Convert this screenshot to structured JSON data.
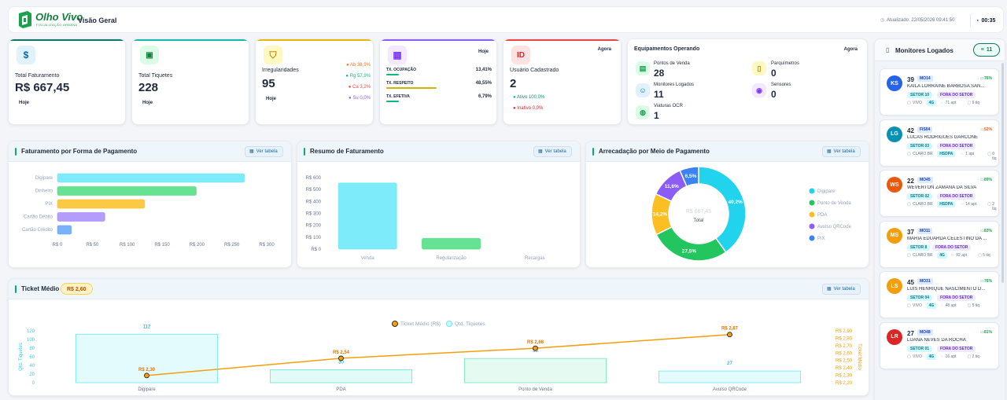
{
  "header": {
    "logo_text": "Olho Vivo",
    "logo_sub": "FISCALIZAÇÃO URBANA",
    "title": "Visão Geral",
    "updated": "Atualizado: 22/05/2026 09:41:50",
    "timer": "00:35"
  },
  "kpi": {
    "faturamento": {
      "label": "Total Faturamento",
      "value": "R$ 667,45",
      "period": "Hoje"
    },
    "tiquetes": {
      "label": "Total Tiquetes",
      "value": "228",
      "period": "Hoje"
    },
    "irregularidades": {
      "label": "Irregularidades",
      "value": "95",
      "period": "Hoje",
      "breakdown": [
        {
          "label": "Ab 38,9%",
          "color": "#f97316"
        },
        {
          "label": "Rg 57,9%",
          "color": "#10b981"
        },
        {
          "label": "Ca 3,2%",
          "color": "#ef4444"
        },
        {
          "label": "Su 0,0%",
          "color": "#8b5cf6"
        }
      ]
    },
    "taxas": {
      "period": "Hoje",
      "rows": [
        {
          "label": "TX. OCUPAÇÃO",
          "value": "13,41%",
          "fill": 0.13,
          "color": "#10b981"
        },
        {
          "label": "TX. RESPEITO",
          "value": "48,55%",
          "fill": 0.49,
          "color": "#d4b106"
        },
        {
          "label": "TX. EFETIVA",
          "value": "6,79%",
          "fill": 0.07,
          "color": "#10b981"
        }
      ]
    },
    "usuario": {
      "label": "Usuário Cadastrado",
      "value": "2",
      "period": "Agora",
      "ativo": "Ativo 100,0%",
      "inativo": "Inativo 0,0%"
    }
  },
  "equipamentos": {
    "title": "Equipamentos Operando",
    "period": "Agora",
    "items": [
      {
        "label": "Pontos de Venda",
        "value": "28"
      },
      {
        "label": "Parquímetros",
        "value": "0"
      },
      {
        "label": "Monitores Logados",
        "value": "11"
      },
      {
        "label": "Sensores",
        "value": "0"
      },
      {
        "label": "Viaturas OCR",
        "value": "1"
      }
    ]
  },
  "monitores": {
    "title": "Monitores Logados",
    "count": "11",
    "items": [
      {
        "initials": "KS",
        "color": "#2563eb",
        "num": "39",
        "code": "MO14",
        "pct": "76%",
        "pct_color": "#16a34a",
        "name": "KAILA LORRAINE BARBOSA SAN...",
        "setor": "SETOR 10",
        "status": "FORA DO SETOR",
        "operadora": "VIVO",
        "rede": "4G",
        "apt": "71 apt",
        "tiq": "6 tiq"
      },
      {
        "initials": "LG",
        "color": "#0891b2",
        "num": "42",
        "code": "FIS04",
        "pct": "52%",
        "pct_color": "#ea580c",
        "name": "LUCAS RODRIGUES GARCONE",
        "setor": "SETOR 03",
        "status": "FORA DO SETOR",
        "operadora": "CLARO BR",
        "rede": "HSDPA",
        "apt": "1 apt",
        "tiq": "0 tiq"
      },
      {
        "initials": "WS",
        "color": "#ea580c",
        "num": "22",
        "code": "MO45",
        "pct": "89%",
        "pct_color": "#16a34a",
        "name": "WEVERTON ZAMANA DA SILVA",
        "setor": "SETOR 02",
        "status": "FORA DO SETOR",
        "operadora": "CLARO BR",
        "rede": "HSDPA",
        "apt": "14 apt",
        "tiq": "2 tiq"
      },
      {
        "initials": "MS",
        "color": "#f59e0b",
        "num": "37",
        "code": "MO11",
        "pct": "83%",
        "pct_color": "#16a34a",
        "name": "MARIA EDUARDA CELESTINO DA ...",
        "setor": "SETOR 8",
        "status": "FORA DO SETOR",
        "operadora": "CLARO BR",
        "rede": "4G",
        "apt": "92 apt",
        "tiq": "5 tiq"
      },
      {
        "initials": "LS",
        "color": "#f59e0b",
        "num": "45",
        "code": "MO31",
        "pct": "76%",
        "pct_color": "#16a34a",
        "name": "LUIS HENRIQUE NASCIMENTO D...",
        "setor": "SETOR 04",
        "status": "FORA DO SETOR",
        "operadora": "VIVO",
        "rede": "4G",
        "apt": "48 apt",
        "tiq": "5 tiq"
      },
      {
        "initials": "LR",
        "color": "#dc2626",
        "num": "27",
        "code": "MO48",
        "pct": "81%",
        "pct_color": "#16a34a",
        "name": "LUANA NEVES DA ROCHA",
        "setor": "SETOR 01",
        "status": "FORA DO SETOR",
        "operadora": "VIVO",
        "rede": "4G",
        "apt": "16 apt",
        "tiq": "2 tiq"
      }
    ]
  },
  "sections": {
    "forma": {
      "title": "Faturamento por Forma de Pagamento",
      "btn": "Ver tabela"
    },
    "resumo": {
      "title": "Resumo de Faturamento",
      "btn": "Ver tabela"
    },
    "meio": {
      "title": "Arrecadação por Meio de Pagamento",
      "btn": "Ver tabela"
    },
    "ticket": {
      "title": "Ticket Médio",
      "badge": "R$ 2,60",
      "btn": "Ver tabela"
    }
  },
  "chart_data": [
    {
      "type": "bar",
      "orientation": "horizontal",
      "categories": [
        "Digipare",
        "Dinheiro",
        "PIX",
        "Cartão Débito",
        "Cartão Crédito"
      ],
      "values": [
        268,
        199,
        125,
        68,
        20
      ],
      "colors": [
        "#67e8f9",
        "#4ade80",
        "#fbbf24",
        "#a78bfa",
        "#60a5fa"
      ],
      "xticks": [
        "R$ 0",
        "R$ 50",
        "R$ 100",
        "R$ 150",
        "R$ 200",
        "R$ 250",
        "R$ 300"
      ],
      "xlim": [
        0,
        300
      ]
    },
    {
      "type": "bar",
      "categories": [
        "Venda",
        "Regularização",
        "Recargas"
      ],
      "values": [
        555,
        90,
        0
      ],
      "colors": [
        "#67e8f9",
        "#4ade80",
        "#fbbf24"
      ],
      "yticks": [
        "R$ 600",
        "R$ 500",
        "R$ 400",
        "R$ 300",
        "R$ 200",
        "R$ 100",
        "R$ 0"
      ],
      "ylim": [
        0,
        600
      ]
    },
    {
      "type": "pie",
      "categories": [
        "Digipare",
        "Ponto de Venda",
        "PDA",
        "Avulso QRCode",
        "PIX"
      ],
      "values": [
        40.2,
        27.5,
        14.2,
        11.6,
        6.5
      ],
      "labels": [
        "40,2%",
        "27,5%",
        "14,2%",
        "11,6%",
        "6,5%"
      ],
      "colors": [
        "#22d3ee",
        "#22c55e",
        "#fbbf24",
        "#8b5cf6",
        "#3b82f6"
      ],
      "center_value": "R$ 667,45",
      "center_label": "Total"
    },
    {
      "type": "bar+line",
      "categories": [
        "Digipare",
        "PDA",
        "Ponto de Venda",
        "Avulso QRCode"
      ],
      "series": [
        {
          "name": "Qtd. Tiquetes",
          "values": [
            112,
            30,
            56,
            27
          ],
          "labels": [
            "112",
            "30",
            "56",
            "27"
          ]
        },
        {
          "name": "Ticket Médio (R$)",
          "values": [
            2.3,
            2.54,
            2.68,
            2.87
          ],
          "labels": [
            "R$ 2,30",
            "R$ 2,54",
            "R$ 2,68",
            "R$ 2,87"
          ]
        }
      ],
      "ylabel": "Qtd. Tiquetes",
      "y2label": "Ticket Médio",
      "yticks": [
        "120",
        "100",
        "80",
        "60",
        "40",
        "20",
        "0"
      ],
      "y2ticks": [
        "R$ 2,90",
        "R$ 2,80",
        "R$ 2,70",
        "R$ 2,60",
        "R$ 2,50",
        "R$ 2,40",
        "R$ 2,30",
        "R$ 2,20"
      ],
      "ylim": [
        0,
        120
      ],
      "y2lim": [
        2.2,
        2.9
      ]
    }
  ]
}
